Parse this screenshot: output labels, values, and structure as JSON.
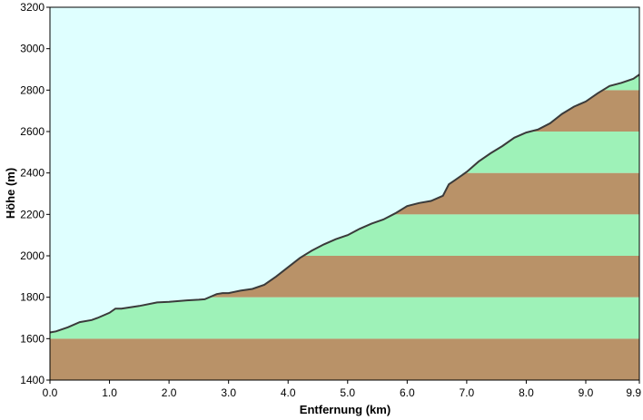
{
  "chart_data": {
    "type": "area",
    "title": "",
    "xlabel": "Entfernung  (km)",
    "ylabel": "Höhe (m)",
    "xlim": [
      0,
      9.9
    ],
    "ylim": [
      1400,
      3200
    ],
    "x_ticks": [
      "0.0",
      "1.0",
      "2.0",
      "3.0",
      "4.0",
      "5.0",
      "6.0",
      "7.0",
      "8.0",
      "9.0",
      "9.9"
    ],
    "y_ticks": [
      "1400",
      "1600",
      "1800",
      "2000",
      "2200",
      "2400",
      "2600",
      "2800",
      "3000",
      "3200"
    ],
    "band_step": 200,
    "colors": {
      "sky": "#dfffff",
      "band_brown": "#b99268",
      "band_green": "#9ef2b8",
      "profile_line": "#3a3a3a",
      "frame": "#000000"
    },
    "series": [
      {
        "x": [
          0.0,
          0.1,
          0.3,
          0.5,
          0.7,
          0.8,
          1.0,
          1.1,
          1.2,
          1.5,
          1.8,
          2.0,
          2.3,
          2.5,
          2.6,
          2.8,
          2.9,
          3.0,
          3.2,
          3.4,
          3.6,
          3.8,
          4.0,
          4.2,
          4.4,
          4.6,
          4.8,
          5.0,
          5.2,
          5.4,
          5.6,
          5.8,
          6.0,
          6.2,
          6.4,
          6.6,
          6.7,
          6.8,
          7.0,
          7.2,
          7.4,
          7.6,
          7.8,
          8.0,
          8.2,
          8.4,
          8.6,
          8.8,
          9.0,
          9.2,
          9.4,
          9.6,
          9.8,
          9.9
        ],
        "y": [
          1630,
          1635,
          1655,
          1680,
          1690,
          1700,
          1725,
          1745,
          1745,
          1758,
          1775,
          1778,
          1785,
          1788,
          1790,
          1815,
          1820,
          1820,
          1832,
          1840,
          1860,
          1900,
          1945,
          1990,
          2025,
          2055,
          2080,
          2100,
          2130,
          2155,
          2175,
          2205,
          2240,
          2255,
          2265,
          2290,
          2345,
          2365,
          2405,
          2455,
          2495,
          2530,
          2570,
          2595,
          2610,
          2640,
          2685,
          2720,
          2745,
          2785,
          2820,
          2835,
          2855,
          2875
        ]
      }
    ]
  }
}
